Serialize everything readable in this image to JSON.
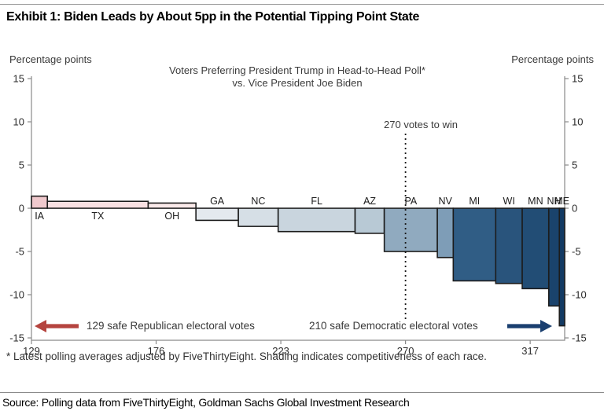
{
  "header": {
    "title": "Exhibit 1: Biden Leads by About 5pp in the Potential Tipping Point State"
  },
  "footnote": "* Latest polling averages adjusted by FiveThirtyEight.  Shading indicates competitiveness of each race.",
  "source": "Source: Polling data from FiveThirtyEight, Goldman Sachs Global Investment Research",
  "chart_data": {
    "type": "bar",
    "variant": "variable-width bars; bar width proportional to electoral votes, x axis is cumulative electoral votes",
    "title": "Voters Preferring President Trump in Head-to-Head Poll*",
    "subtitle": "vs. Vice President Joe Biden",
    "axis_title_left": "Percentage points",
    "axis_title_right": "Percentage points",
    "ylim": [
      -15,
      15
    ],
    "yticks": [
      15,
      10,
      5,
      0,
      -5,
      -10,
      -15
    ],
    "xlim": [
      129,
      330
    ],
    "xticks": [
      129,
      176,
      223,
      270,
      317
    ],
    "grid": false,
    "legend": "none",
    "bar_border_color": "#1c1c1c",
    "axis_color": "#8a8a8a",
    "reference_line": {
      "x": 270,
      "label": "270 votes to win",
      "style": "dotted"
    },
    "series": [
      {
        "state": "IA",
        "electoral_votes": 6,
        "trump_margin_pp": 1.4,
        "color": "#f0c9cd"
      },
      {
        "state": "TX",
        "electoral_votes": 38,
        "trump_margin_pp": 0.8,
        "color": "#f8e0e2"
      },
      {
        "state": "OH",
        "electoral_votes": 18,
        "trump_margin_pp": 0.6,
        "color": "#faeaea"
      },
      {
        "state": "GA",
        "electoral_votes": 16,
        "trump_margin_pp": -1.4,
        "color": "#e4e9ee"
      },
      {
        "state": "NC",
        "electoral_votes": 15,
        "trump_margin_pp": -2.1,
        "color": "#d6dfe6"
      },
      {
        "state": "FL",
        "electoral_votes": 29,
        "trump_margin_pp": -2.7,
        "color": "#c9d5de"
      },
      {
        "state": "AZ",
        "electoral_votes": 11,
        "trump_margin_pp": -2.9,
        "color": "#b8c9d5"
      },
      {
        "state": "PA",
        "electoral_votes": 20,
        "trump_margin_pp": -5.0,
        "color": "#90aabf"
      },
      {
        "state": "NV",
        "electoral_votes": 6,
        "trump_margin_pp": -5.7,
        "color": "#7e9db7"
      },
      {
        "state": "MI",
        "electoral_votes": 16,
        "trump_margin_pp": -8.4,
        "color": "#305d85"
      },
      {
        "state": "WI",
        "electoral_votes": 10,
        "trump_margin_pp": -8.7,
        "color": "#29547c"
      },
      {
        "state": "MN",
        "electoral_votes": 10,
        "trump_margin_pp": -9.3,
        "color": "#224d75"
      },
      {
        "state": "NH",
        "electoral_votes": 4,
        "trump_margin_pp": -11.3,
        "color": "#1a436c"
      },
      {
        "state": "ME",
        "electoral_votes": 2,
        "trump_margin_pp": -13.6,
        "color": "#133a63"
      }
    ],
    "annotations": [
      {
        "text": "129 safe Republican electoral votes",
        "arrow_direction": "left",
        "arrow_color": "#b5443f"
      },
      {
        "text": "210 safe Democratic electoral votes",
        "arrow_direction": "right",
        "arrow_color": "#1a3f6f"
      }
    ]
  }
}
